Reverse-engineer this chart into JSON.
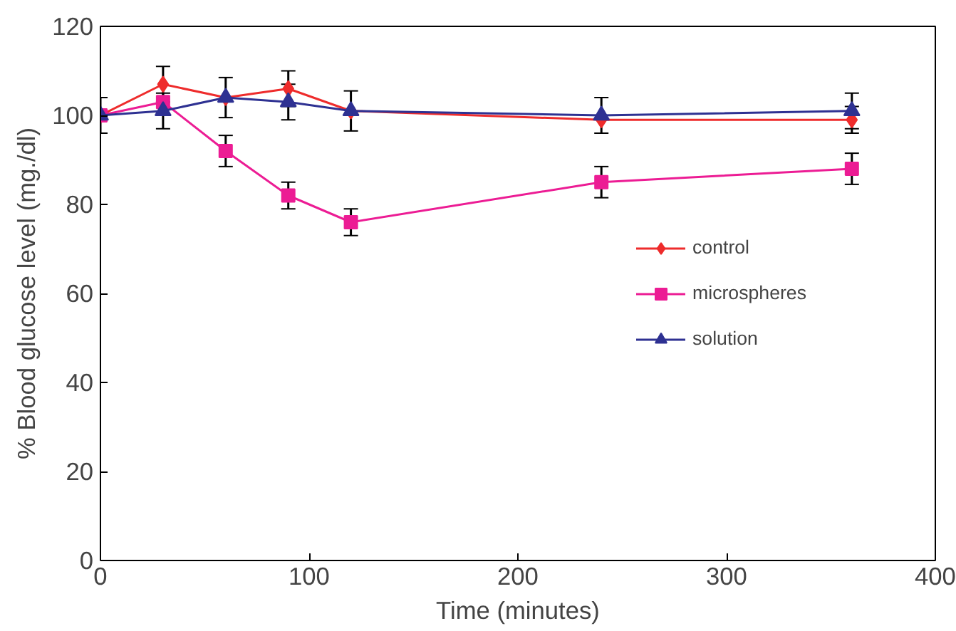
{
  "chart_data": {
    "type": "line",
    "xlabel": "Time (minutes)",
    "ylabel": "% Blood glucose level (mg./dl)",
    "x": [
      0,
      30,
      60,
      90,
      120,
      240,
      360
    ],
    "series": [
      {
        "name": "control",
        "color": "#ee2c2c",
        "marker": "diamond",
        "values": [
          100,
          107,
          104,
          106,
          101,
          99,
          99
        ],
        "errors": [
          null,
          4,
          null,
          4,
          null,
          null,
          3
        ]
      },
      {
        "name": "microspheres",
        "color": "#ec1c94",
        "marker": "square",
        "values": [
          100,
          103,
          92,
          82,
          76,
          85,
          88
        ],
        "errors": [
          null,
          null,
          3.5,
          3,
          3,
          3.5,
          3.5
        ]
      },
      {
        "name": "solution",
        "color": "#2e3192",
        "marker": "triangle",
        "values": [
          100,
          101,
          104,
          103,
          101,
          100,
          101
        ],
        "errors": [
          4,
          4,
          4.5,
          4,
          4.5,
          4,
          4
        ]
      }
    ],
    "xlim": [
      0,
      400
    ],
    "xticks": [
      0,
      100,
      200,
      300,
      400
    ],
    "ylim": [
      0,
      120
    ],
    "yticks": [
      0,
      20,
      40,
      60,
      80,
      100,
      120
    ],
    "grid": false,
    "legend": "right"
  }
}
